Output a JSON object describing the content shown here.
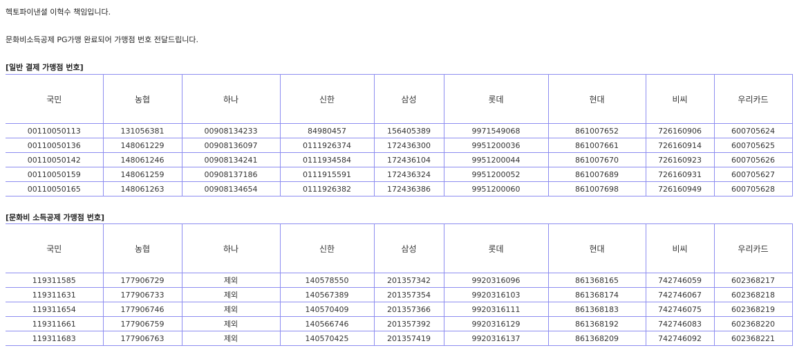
{
  "greeting": "헥토파이낸셜 이혁수 책임입니다.",
  "message": "문화비소득공제 PG가맹 완료되어 가맹점 번호 전달드립니다.",
  "tables": [
    {
      "title": "[일반 결제 가맹점 번호]",
      "headers": [
        "국민",
        "농협",
        "하나",
        "신한",
        "삼성",
        "롯데",
        "현대",
        "비씨",
        "우리카드"
      ],
      "rows": [
        [
          "00110050113",
          "131056381",
          "00908134233",
          "84980457",
          "156405389",
          "9971549068",
          "861007652",
          "726160906",
          "600705624"
        ],
        [
          "00110050136",
          "148061229",
          "00908136097",
          "0111926374",
          "172436300",
          "9951200036",
          "861007661",
          "726160914",
          "600705625"
        ],
        [
          "00110050142",
          "148061246",
          "00908134241",
          "0111934584",
          "172436104",
          "9951200044",
          "861007670",
          "726160923",
          "600705626"
        ],
        [
          "00110050159",
          "148061259",
          "00908137186",
          "0111915591",
          "172436324",
          "9951200052",
          "861007689",
          "726160931",
          "600705627"
        ],
        [
          "00110050165",
          "148061263",
          "00908134654",
          "0111926382",
          "172436386",
          "9951200060",
          "861007698",
          "726160949",
          "600705628"
        ]
      ]
    },
    {
      "title": "[문화비 소득공제 가맹점 번호]",
      "headers": [
        "국민",
        "농협",
        "하나",
        "신한",
        "삼성",
        "롯데",
        "현대",
        "비씨",
        "우리카드"
      ],
      "rows": [
        [
          "119311585",
          "177906729",
          "제외",
          "140578550",
          "201357342",
          "9920316096",
          "861368165",
          "742746059",
          "602368217"
        ],
        [
          "119311631",
          "177906733",
          "제외",
          "140567389",
          "201357354",
          "9920316103",
          "861368174",
          "742746067",
          "602368218"
        ],
        [
          "119311654",
          "177906746",
          "제외",
          "140570409",
          "201357366",
          "9920316111",
          "861368183",
          "742746075",
          "602368219"
        ],
        [
          "119311661",
          "177906759",
          "제외",
          "140566746",
          "201357392",
          "9920316129",
          "861368192",
          "742746083",
          "602368220"
        ],
        [
          "119311683",
          "177906763",
          "제외",
          "140570425",
          "201357419",
          "9920316137",
          "861368209",
          "742746092",
          "602368221"
        ]
      ]
    }
  ]
}
